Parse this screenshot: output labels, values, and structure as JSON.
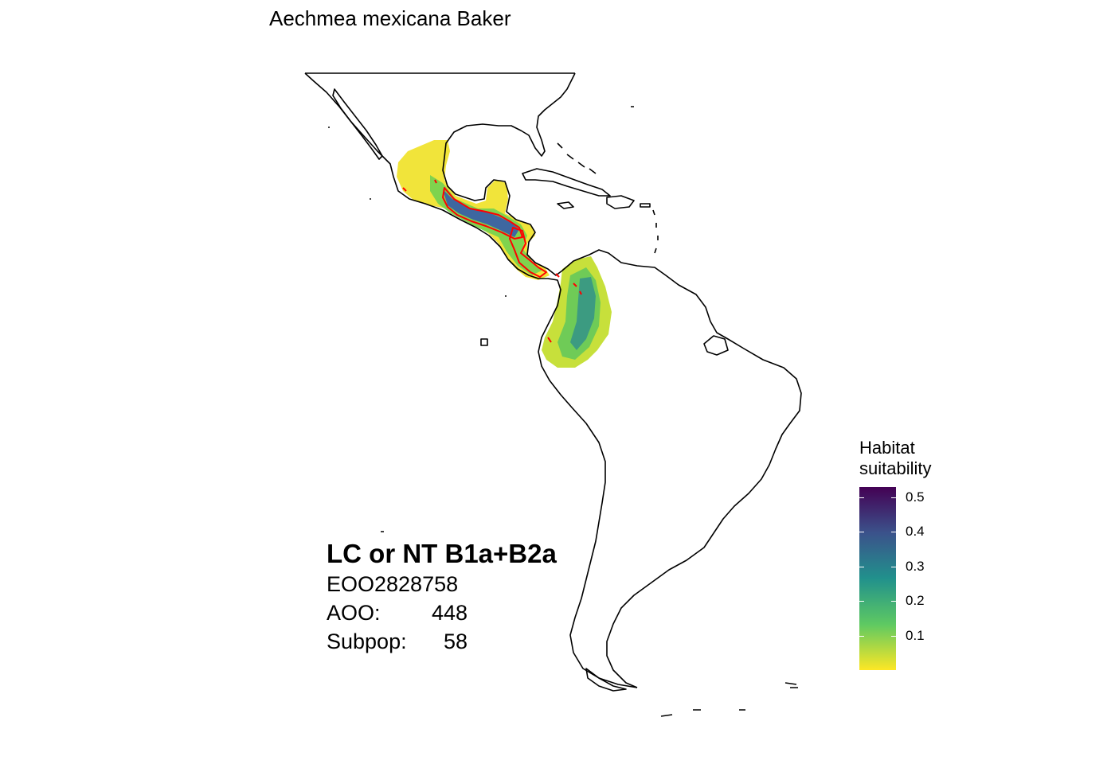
{
  "title": "Aechmea mexicana Baker",
  "assessment": {
    "category": "LC or NT B1a+B2a",
    "eoo_text": "EOO2828758",
    "aoo_label": "AOO:",
    "aoo_value": "448",
    "subpop_label": "Subpop:",
    "subpop_value": "58"
  },
  "legend": {
    "title_line1": "Habitat",
    "title_line2": "suitability",
    "min": 0.0,
    "max": 0.53,
    "ticks": [
      "0.5",
      "0.4",
      "0.3",
      "0.2",
      "0.1"
    ],
    "tick_values": [
      0.5,
      0.4,
      0.3,
      0.2,
      0.1
    ],
    "palette": [
      "#440154",
      "#3b528b",
      "#21918c",
      "#5ec962",
      "#fde725"
    ]
  },
  "colors": {
    "coastline": "#000000",
    "occurrence_outline": "#ff0000",
    "background": "#ffffff"
  }
}
